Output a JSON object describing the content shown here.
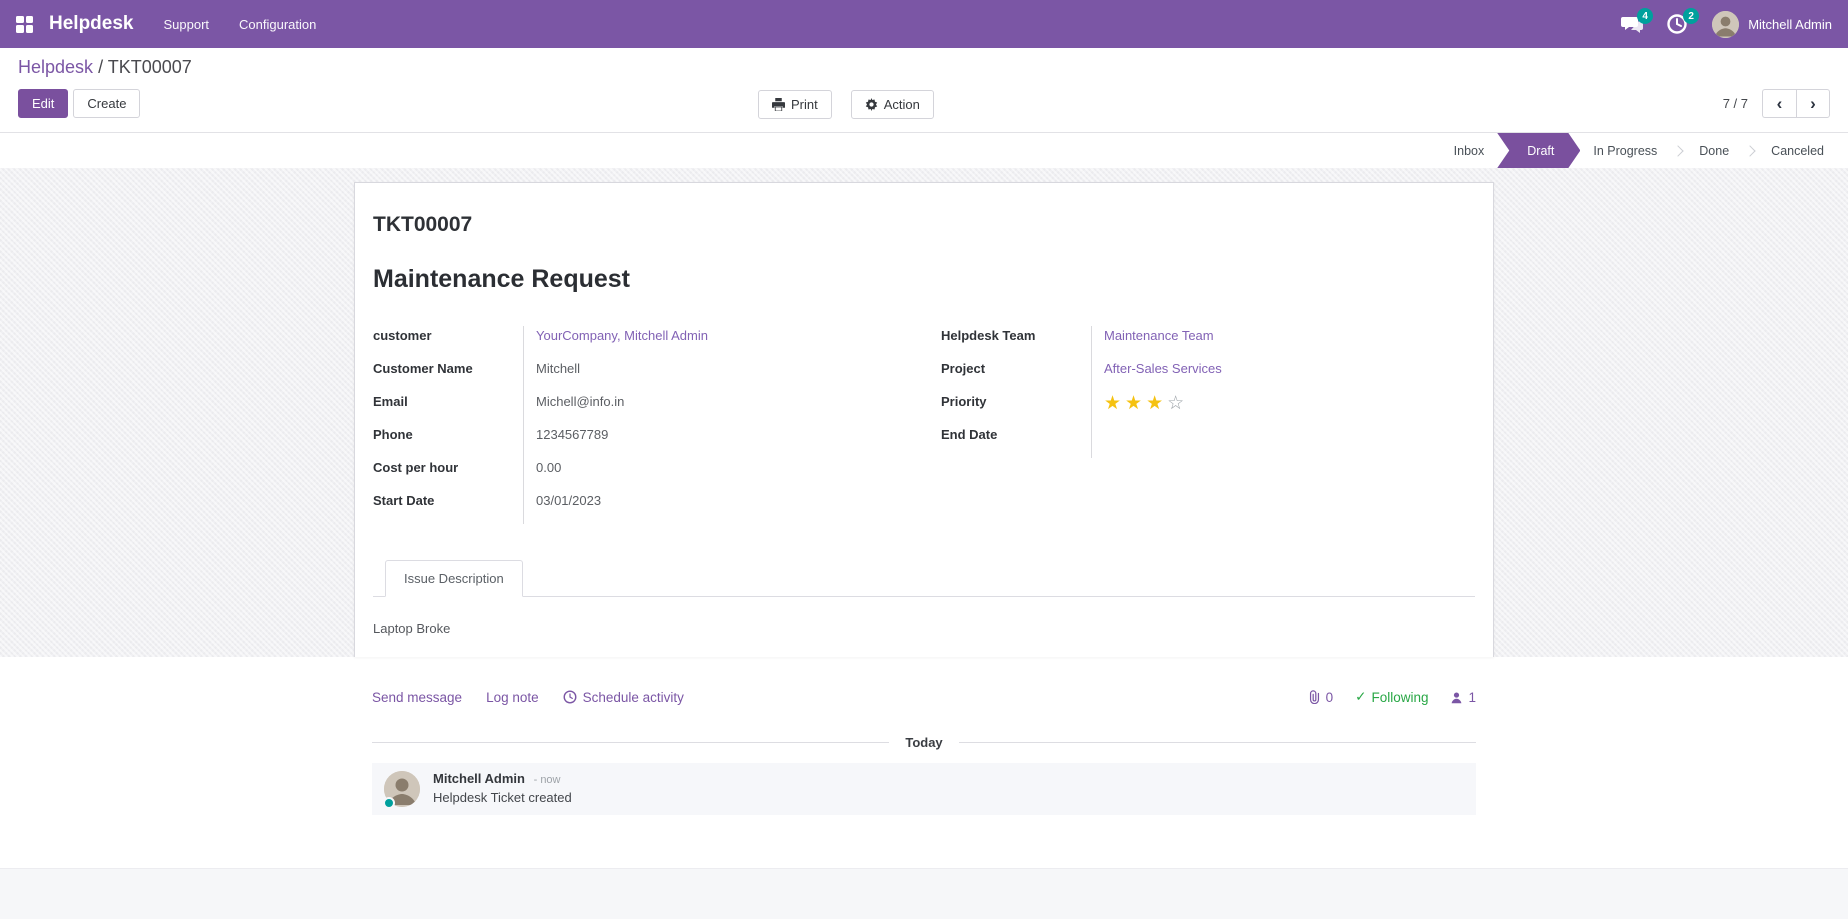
{
  "navbar": {
    "brand": "Helpdesk",
    "menus": [
      {
        "label": "Support"
      },
      {
        "label": "Configuration"
      }
    ],
    "messages_badge": "4",
    "activities_badge": "2",
    "user_name": "Mitchell Admin"
  },
  "control_panel": {
    "breadcrumb_parent": "Helpdesk",
    "breadcrumb_separator": "/",
    "breadcrumb_current": "TKT00007",
    "edit_label": "Edit",
    "create_label": "Create",
    "print_label": "Print",
    "action_label": "Action",
    "pager_value": "7 / 7",
    "pager_prev_icon": "‹",
    "pager_next_icon": "›"
  },
  "statusbar": {
    "stages": [
      "Inbox",
      "Draft",
      "In Progress",
      "Done",
      "Canceled"
    ],
    "active_stage": "Draft"
  },
  "form": {
    "ticket_number": "TKT00007",
    "title": "Maintenance Request",
    "left_fields": [
      {
        "label": "customer",
        "value": "YourCompany, Mitchell Admin"
      },
      {
        "label": "Customer Name",
        "value": "Mitchell"
      },
      {
        "label": "Email",
        "value": "Michell@info.in"
      },
      {
        "label": "Phone",
        "value": "1234567789"
      },
      {
        "label": "Cost per hour",
        "value": "0.00"
      },
      {
        "label": "Start Date",
        "value": "03/01/2023"
      }
    ],
    "right_fields": [
      {
        "label": "Helpdesk Team",
        "value": "Maintenance Team"
      },
      {
        "label": "Project",
        "value": "After-Sales Services"
      },
      {
        "label": "Priority",
        "value": ""
      },
      {
        "label": "End Date",
        "value": ""
      }
    ],
    "priority": {
      "filled": 3,
      "total": 4,
      "star_filled_glyph": "★",
      "star_empty_glyph": "☆"
    },
    "tab_label": "Issue Description",
    "description": "Laptop Broke"
  },
  "chatter": {
    "send_message_label": "Send message",
    "log_note_label": "Log note",
    "schedule_activity_label": "Schedule activity",
    "attachment_count": "0",
    "following_label": "Following",
    "following_check_glyph": "✓",
    "follower_count": "1",
    "date_divider": "Today",
    "messages": [
      {
        "author": "Mitchell Admin",
        "time": "- now",
        "body": "Helpdesk Ticket created"
      }
    ]
  },
  "colors": {
    "brand": "#7b56a5",
    "primary_button": "#7a509e",
    "link": "#8262b5",
    "star_gold": "#f5c211",
    "following_green": "#28a745",
    "badge_teal": "#00a09d"
  }
}
